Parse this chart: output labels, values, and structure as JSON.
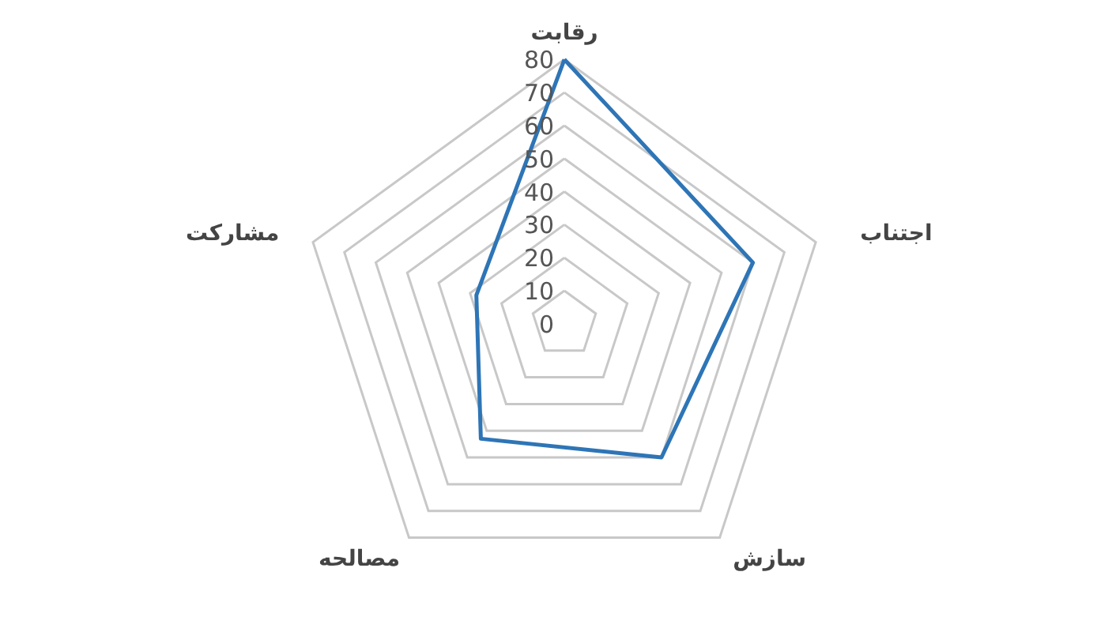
{
  "chart_data": {
    "type": "radar",
    "categories": [
      "رقابت",
      "اجتناب",
      "سازش",
      "مصالحه",
      "مشارکت"
    ],
    "series": [
      {
        "color": "#2e75b6",
        "values": [
          80,
          60,
          50,
          43,
          28
        ]
      }
    ],
    "ylim": [
      0,
      80
    ],
    "yticks": [
      0,
      10,
      20,
      30,
      40,
      50,
      60,
      70,
      80
    ],
    "grid": true
  }
}
